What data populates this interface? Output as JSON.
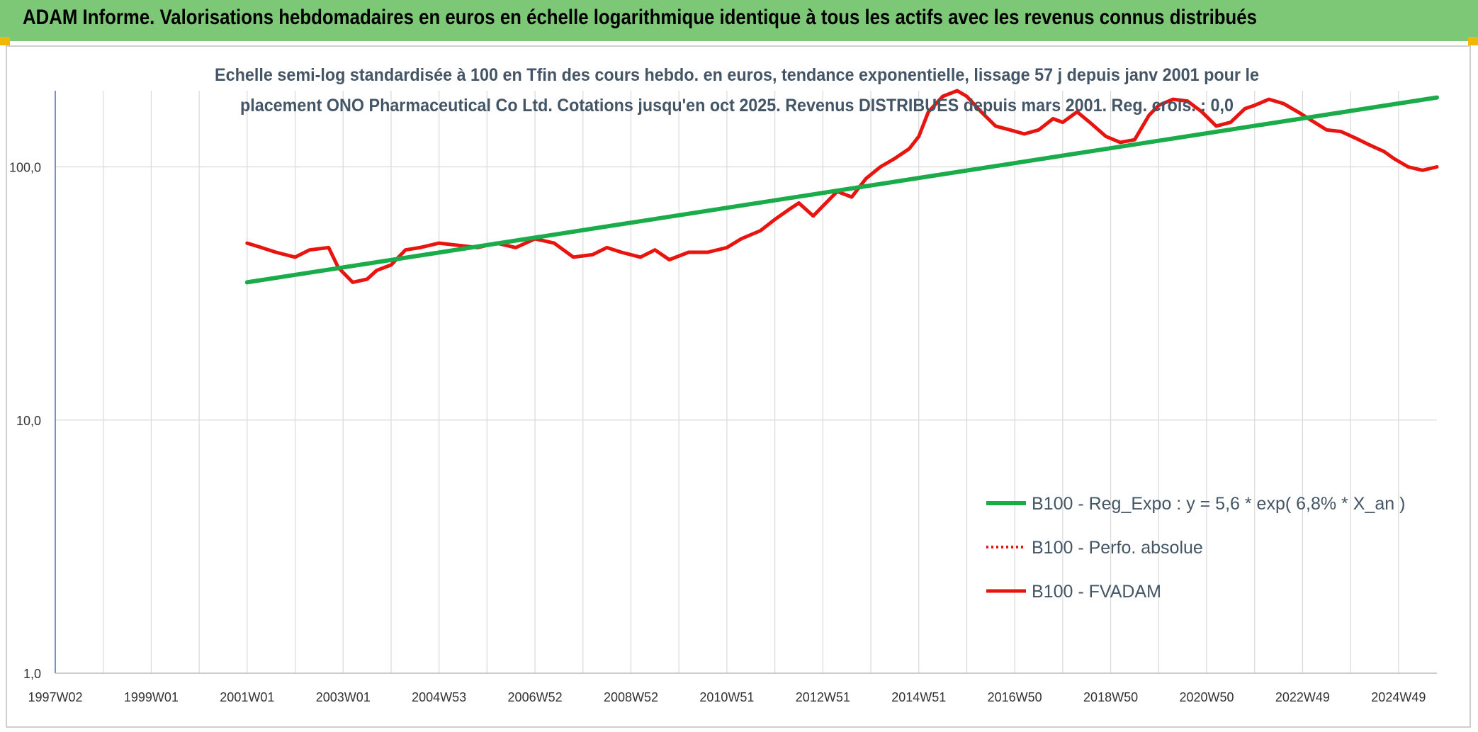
{
  "banner": {
    "title": "ADAM Informe. Valorisations hebdomadaires en euros en échelle logarithmique identique à tous les actifs avec les revenus connus distribués"
  },
  "colors": {
    "banner_bg": "#7dc876",
    "corner": "#f2b705",
    "trend_line": "#1aab4b",
    "fvadam_line": "#e8140f",
    "grid": "#d9d9d9",
    "axis": "#4472c4"
  },
  "chart_data": {
    "type": "line",
    "subtitle_lines": [
      "Echelle semi-log standardisée à 100 en Tfin des cours hebdo. en euros, tendance exponentielle, lissage 57 j depuis janv 2001 pour le",
      "placement ONO Pharmaceutical Co Ltd. Cotations jusqu'en oct 2025. Revenus DISTRIBUES depuis mars 2001. Reg. crois. : 0,0"
    ],
    "y_scale": "log",
    "ylim": [
      1,
      200
    ],
    "y_ticks": [
      {
        "value": 1,
        "label": "1,0"
      },
      {
        "value": 10,
        "label": "10,0"
      },
      {
        "value": 100,
        "label": "100,0"
      }
    ],
    "xlim": [
      1997.0,
      2025.8
    ],
    "x_tick_labels": [
      "1997W02",
      "1999W01",
      "2001W01",
      "2003W01",
      "2004W53",
      "2006W52",
      "2008W52",
      "2010W51",
      "2012W51",
      "2014W51",
      "2016W50",
      "2018W50",
      "2020W50",
      "2022W49",
      "2024W49"
    ],
    "x_ticks": [
      1997.0,
      1999.0,
      2001.0,
      2003.0,
      2005.0,
      2007.0,
      2009.0,
      2011.0,
      2013.0,
      2015.0,
      2017.0,
      2019.0,
      2021.0,
      2023.0,
      2025.0
    ],
    "grid": true,
    "legend_position": "right",
    "series": [
      {
        "name": "B100 - Reg_Expo : y = 5,6 * exp( 6,8% *  X_an )",
        "style": "solid-green",
        "x": [
          2001.0,
          2025.8
        ],
        "y": [
          35,
          188
        ]
      },
      {
        "name": "B100 - Perfo. absolue",
        "style": "dotted-red",
        "x": [],
        "y": []
      },
      {
        "name": "B100 - FVADAM",
        "style": "solid-red",
        "x": [
          2001.0,
          2001.3,
          2001.6,
          2002.0,
          2002.3,
          2002.7,
          2002.9,
          2003.2,
          2003.5,
          2003.7,
          2004.0,
          2004.3,
          2004.6,
          2005.0,
          2005.4,
          2005.8,
          2006.2,
          2006.6,
          2007.0,
          2007.4,
          2007.8,
          2008.2,
          2008.5,
          2008.8,
          2009.2,
          2009.5,
          2009.8,
          2010.2,
          2010.6,
          2011.0,
          2011.3,
          2011.7,
          2012.0,
          2012.3,
          2012.5,
          2012.8,
          2013.0,
          2013.3,
          2013.6,
          2013.9,
          2014.2,
          2014.5,
          2014.8,
          2015.0,
          2015.2,
          2015.5,
          2015.8,
          2016.0,
          2016.3,
          2016.6,
          2016.9,
          2017.2,
          2017.5,
          2017.8,
          2018.0,
          2018.3,
          2018.6,
          2018.9,
          2019.2,
          2019.5,
          2019.8,
          2020.0,
          2020.3,
          2020.6,
          2020.9,
          2021.2,
          2021.5,
          2021.8,
          2022.0,
          2022.3,
          2022.6,
          2022.9,
          2023.2,
          2023.5,
          2023.8,
          2024.1,
          2024.4,
          2024.7,
          2024.9,
          2025.2,
          2025.5,
          2025.8
        ],
        "y": [
          50,
          48,
          46,
          44,
          47,
          48,
          40,
          35,
          36,
          39,
          41,
          47,
          48,
          50,
          49,
          48,
          50,
          48,
          52,
          50,
          44,
          45,
          48,
          46,
          44,
          47,
          43,
          46,
          46,
          48,
          52,
          56,
          62,
          68,
          72,
          64,
          70,
          80,
          76,
          90,
          100,
          108,
          118,
          132,
          165,
          190,
          200,
          190,
          165,
          145,
          140,
          135,
          140,
          155,
          150,
          165,
          148,
          132,
          125,
          128,
          160,
          175,
          185,
          182,
          165,
          145,
          150,
          170,
          175,
          185,
          178,
          165,
          152,
          140,
          138,
          130,
          122,
          115,
          108,
          100,
          97,
          100
        ]
      }
    ]
  }
}
